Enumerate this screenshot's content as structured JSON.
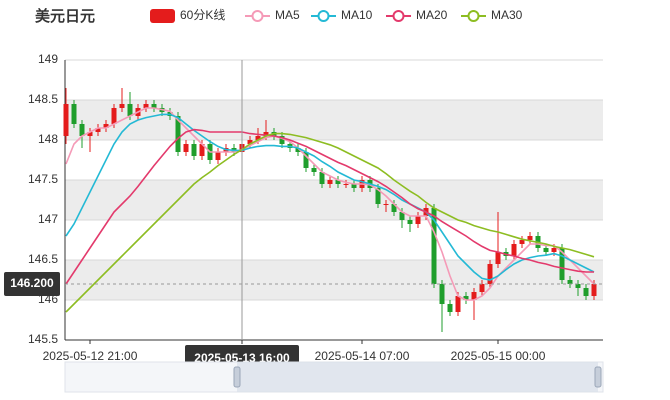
{
  "chart_data": {
    "type": "candlestick",
    "title": "美元日元",
    "candle_name": "60分K线",
    "up_color": "#e41c1c",
    "down_color": "#1f9e2c",
    "categories": [
      null,
      null,
      null,
      "2025-05-12 21:00",
      null,
      null,
      null,
      null,
      null,
      null,
      null,
      null,
      null,
      null,
      null,
      null,
      null,
      null,
      null,
      null,
      null,
      null,
      "2025-05-13 16:00",
      null,
      null,
      null,
      null,
      null,
      null,
      null,
      null,
      null,
      null,
      null,
      null,
      null,
      null,
      "2025-05-14 07:00",
      null,
      null,
      null,
      null,
      null,
      null,
      null,
      null,
      null,
      null,
      null,
      null,
      null,
      null,
      null,
      null,
      "2025-05-15 00:00",
      null,
      null,
      null,
      null,
      null,
      null,
      null,
      null,
      null,
      null,
      null,
      null
    ],
    "open": [
      148.05,
      148.45,
      148.2,
      148.05,
      148.1,
      148.15,
      148.2,
      148.4,
      148.45,
      148.3,
      148.4,
      148.45,
      148.4,
      148.35,
      148.3,
      147.85,
      147.95,
      147.8,
      147.95,
      147.75,
      147.85,
      147.9,
      147.85,
      147.95,
      148.0,
      148.05,
      148.1,
      148.05,
      147.95,
      147.9,
      147.85,
      147.65,
      147.6,
      147.45,
      147.5,
      147.45,
      147.45,
      147.4,
      147.5,
      147.4,
      147.2,
      147.2,
      147.1,
      147.0,
      146.95,
      147.05,
      147.15,
      146.2,
      145.95,
      145.85,
      146.05,
      146.0,
      146.1,
      146.2,
      146.45,
      146.6,
      146.55,
      146.7,
      146.75,
      146.8,
      146.65,
      146.6,
      146.65,
      146.25,
      146.2,
      146.15,
      146.05
    ],
    "close": [
      148.45,
      148.2,
      148.05,
      148.1,
      148.15,
      148.2,
      148.4,
      148.45,
      148.3,
      148.4,
      148.45,
      148.4,
      148.35,
      148.3,
      147.85,
      147.95,
      147.8,
      147.95,
      147.75,
      147.85,
      147.9,
      147.85,
      147.95,
      148.0,
      148.05,
      148.1,
      148.05,
      147.95,
      147.9,
      147.85,
      147.65,
      147.6,
      147.45,
      147.5,
      147.45,
      147.45,
      147.4,
      147.5,
      147.4,
      147.2,
      147.2,
      147.1,
      147.0,
      146.95,
      147.05,
      147.15,
      146.2,
      145.95,
      145.85,
      146.05,
      146.0,
      146.1,
      146.2,
      146.45,
      146.6,
      146.55,
      146.7,
      146.75,
      146.8,
      146.65,
      146.6,
      146.65,
      146.25,
      146.2,
      146.15,
      146.05,
      146.2
    ],
    "high": [
      148.65,
      148.5,
      148.25,
      148.15,
      148.2,
      148.25,
      148.45,
      148.65,
      148.6,
      148.45,
      148.5,
      148.5,
      148.45,
      148.4,
      148.35,
      148.0,
      148.0,
      148.0,
      148.0,
      147.9,
      147.95,
      147.95,
      148.0,
      148.05,
      148.15,
      148.25,
      148.15,
      148.1,
      148.0,
      147.95,
      147.9,
      147.7,
      147.65,
      147.55,
      147.55,
      147.5,
      147.5,
      147.55,
      147.55,
      147.45,
      147.25,
      147.25,
      147.15,
      147.05,
      147.1,
      147.2,
      147.2,
      146.25,
      146.0,
      146.1,
      146.1,
      146.15,
      146.25,
      146.5,
      147.1,
      146.65,
      146.75,
      146.8,
      146.85,
      146.85,
      146.7,
      146.7,
      146.7,
      146.3,
      146.25,
      146.2,
      146.25
    ],
    "low": [
      147.95,
      148.15,
      147.9,
      147.85,
      148.05,
      148.1,
      148.15,
      148.35,
      148.25,
      148.25,
      148.35,
      148.35,
      148.3,
      148.25,
      147.8,
      147.8,
      147.75,
      147.75,
      147.7,
      147.7,
      147.8,
      147.8,
      147.8,
      147.9,
      147.95,
      148.0,
      148.0,
      147.9,
      147.85,
      147.8,
      147.6,
      147.55,
      147.4,
      147.4,
      147.4,
      147.4,
      147.35,
      147.35,
      147.35,
      147.15,
      147.1,
      147.05,
      146.9,
      146.85,
      146.9,
      147.0,
      146.15,
      145.6,
      145.8,
      145.8,
      145.95,
      145.75,
      146.05,
      146.15,
      146.4,
      146.5,
      146.5,
      146.65,
      146.7,
      146.6,
      146.55,
      146.55,
      146.2,
      146.15,
      146.05,
      146.0,
      146.0
    ],
    "series": [
      {
        "name": "MA5",
        "color": "#f59ab7",
        "values": [
          147.7,
          147.95,
          148.05,
          148.1,
          148.15,
          148.15,
          148.2,
          148.25,
          148.3,
          148.35,
          148.4,
          148.4,
          148.38,
          148.36,
          148.25,
          148.15,
          148.05,
          147.95,
          147.85,
          147.85,
          147.85,
          147.85,
          147.88,
          147.93,
          147.98,
          148.03,
          148.05,
          148.02,
          147.98,
          147.9,
          147.8,
          147.7,
          147.6,
          147.55,
          147.5,
          147.47,
          147.45,
          147.45,
          147.44,
          147.38,
          147.3,
          147.2,
          147.1,
          147.05,
          147.05,
          147.05,
          146.85,
          146.6,
          146.3,
          146.05,
          146.0,
          146.0,
          146.05,
          146.15,
          146.3,
          146.4,
          146.5,
          146.6,
          146.7,
          146.7,
          146.68,
          146.68,
          146.6,
          146.5,
          146.4,
          146.3,
          146.2
        ]
      },
      {
        "name": "MA10",
        "color": "#24b9d5",
        "values": [
          146.8,
          146.95,
          147.15,
          147.35,
          147.55,
          147.75,
          147.95,
          148.1,
          148.2,
          148.25,
          148.28,
          148.3,
          148.32,
          148.32,
          148.28,
          148.2,
          148.12,
          148.05,
          147.98,
          147.92,
          147.88,
          147.87,
          147.87,
          147.9,
          147.92,
          147.93,
          147.93,
          147.92,
          147.92,
          147.9,
          147.85,
          147.8,
          147.73,
          147.67,
          147.6,
          147.55,
          147.5,
          147.48,
          147.45,
          147.42,
          147.38,
          147.32,
          147.25,
          147.2,
          147.15,
          147.1,
          147.0,
          146.85,
          146.7,
          146.55,
          146.45,
          146.35,
          146.27,
          146.25,
          146.3,
          146.38,
          146.45,
          146.5,
          146.53,
          146.55,
          146.56,
          146.58,
          146.55,
          146.5,
          146.45,
          146.4,
          146.35
        ]
      },
      {
        "name": "MA20",
        "color": "#e33a6c",
        "values": [
          146.2,
          146.35,
          146.5,
          146.65,
          146.8,
          146.95,
          147.1,
          147.2,
          147.3,
          147.42,
          147.55,
          147.68,
          147.8,
          147.92,
          148.02,
          148.1,
          148.13,
          148.12,
          148.1,
          148.1,
          148.1,
          148.1,
          148.1,
          148.08,
          148.07,
          148.06,
          148.05,
          148.03,
          148.0,
          147.96,
          147.92,
          147.87,
          147.82,
          147.77,
          147.72,
          147.68,
          147.63,
          147.58,
          147.53,
          147.48,
          147.42,
          147.35,
          147.28,
          147.2,
          147.14,
          147.1,
          147.05,
          146.98,
          146.92,
          146.86,
          146.8,
          146.73,
          146.67,
          146.62,
          146.6,
          146.57,
          146.55,
          146.52,
          146.5,
          146.47,
          146.45,
          146.42,
          146.4,
          146.38,
          146.36,
          146.35,
          146.35
        ]
      },
      {
        "name": "MA30",
        "color": "#8dbd22",
        "values": [
          145.85,
          145.95,
          146.05,
          146.15,
          146.25,
          146.35,
          146.45,
          146.55,
          146.65,
          146.75,
          146.85,
          146.95,
          147.05,
          147.15,
          147.25,
          147.35,
          147.45,
          147.53,
          147.6,
          147.68,
          147.75,
          147.82,
          147.88,
          147.95,
          148.0,
          148.05,
          148.08,
          148.08,
          148.07,
          148.05,
          148.03,
          148.0,
          147.97,
          147.94,
          147.9,
          147.85,
          147.8,
          147.75,
          147.7,
          147.65,
          147.58,
          147.5,
          147.43,
          147.36,
          147.3,
          147.22,
          147.15,
          147.1,
          147.05,
          147.0,
          146.97,
          146.93,
          146.9,
          146.87,
          146.85,
          146.82,
          146.79,
          146.76,
          146.74,
          146.72,
          146.7,
          146.67,
          146.65,
          146.63,
          146.6,
          146.57,
          146.54
        ]
      }
    ],
    "ylim": [
      145.5,
      149
    ],
    "yticks": [
      145.5,
      146,
      146.5,
      147,
      147.5,
      148,
      148.5,
      149
    ],
    "band_colors": [
      "#ffffff",
      "#ececec"
    ],
    "last_price": {
      "value": 146.2,
      "label": "146.200"
    },
    "crosshair_index": 22
  }
}
